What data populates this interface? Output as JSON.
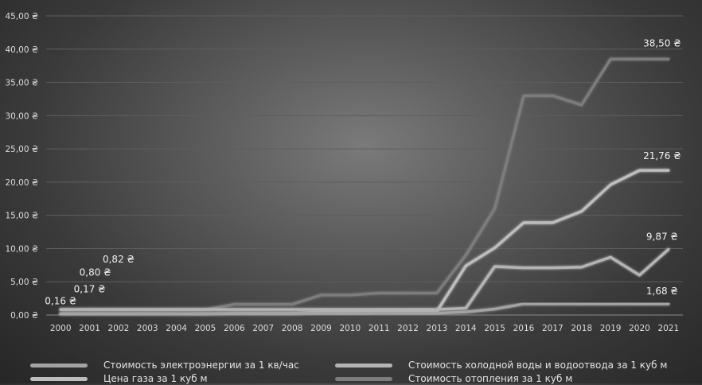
{
  "chart_data": {
    "type": "line",
    "x": [
      "2000",
      "2001",
      "2002",
      "2003",
      "2004",
      "2005",
      "2006",
      "2007",
      "2008",
      "2009",
      "2010",
      "2011",
      "2012",
      "2013",
      "2014",
      "2015",
      "2016",
      "2017",
      "2018",
      "2019",
      "2020",
      "2021"
    ],
    "ylim": [
      0,
      45
    ],
    "yticks": [
      "0,00 ₴",
      "5,00 ₴",
      "10,00 ₴",
      "15,00 ₴",
      "20,00 ₴",
      "25,00 ₴",
      "30,00 ₴",
      "35,00 ₴",
      "40,00 ₴",
      "45,00 ₴"
    ],
    "grid": true,
    "legend_position": "bottom",
    "series": [
      {
        "name": "Стоимость электроэнергии за 1 кв/час",
        "color": "#a3a3a3",
        "values": [
          0.16,
          0.16,
          0.16,
          0.16,
          0.16,
          0.16,
          0.24,
          0.24,
          0.24,
          0.24,
          0.24,
          0.28,
          0.28,
          0.28,
          0.45,
          0.9,
          1.68,
          1.68,
          1.68,
          1.68,
          1.68,
          1.68
        ]
      },
      {
        "name": "Стоимость холодной воды и водоотвода за 1 куб м",
        "color": "#b4b4b4",
        "values": [
          0.82,
          0.82,
          0.82,
          0.82,
          0.82,
          0.82,
          0.82,
          0.82,
          0.82,
          0.82,
          0.82,
          0.82,
          0.82,
          0.82,
          1.0,
          7.3,
          7.1,
          7.1,
          7.2,
          8.7,
          6.0,
          9.87
        ]
      },
      {
        "name": "Цена газа за 1 куб м",
        "color": "#bdbdbd",
        "values": [
          0.17,
          0.17,
          0.17,
          0.17,
          0.17,
          0.17,
          0.25,
          0.25,
          0.25,
          0.45,
          0.45,
          0.5,
          0.5,
          0.55,
          7.4,
          10.1,
          13.9,
          13.9,
          15.6,
          19.6,
          21.76,
          21.76
        ]
      },
      {
        "name": "Стоимость отопления за 1 куб м",
        "color": "#7c7c7c",
        "values": [
          0.8,
          0.8,
          0.8,
          0.8,
          0.8,
          0.8,
          1.6,
          1.6,
          1.6,
          3.0,
          3.0,
          3.3,
          3.3,
          3.3,
          9.0,
          16.0,
          33.0,
          33.0,
          31.6,
          38.5,
          38.5,
          38.5
        ]
      }
    ],
    "annotations": [
      {
        "text": "0,16 ₴",
        "x": "2000",
        "y": 0.16
      },
      {
        "text": "0,17 ₴",
        "x": "2001",
        "y": 0.17
      },
      {
        "text": "0,80 ₴",
        "x": "2001",
        "y": 0.8
      },
      {
        "text": "0,82 ₴",
        "x": "2002",
        "y": 0.82
      },
      {
        "text": "38,50 ₴",
        "x": "2021",
        "y": 38.5
      },
      {
        "text": "21,76 ₴",
        "x": "2021",
        "y": 21.76
      },
      {
        "text": "9,87 ₴",
        "x": "2021",
        "y": 9.87
      },
      {
        "text": "1,68 ₴",
        "x": "2021",
        "y": 1.68
      }
    ]
  }
}
